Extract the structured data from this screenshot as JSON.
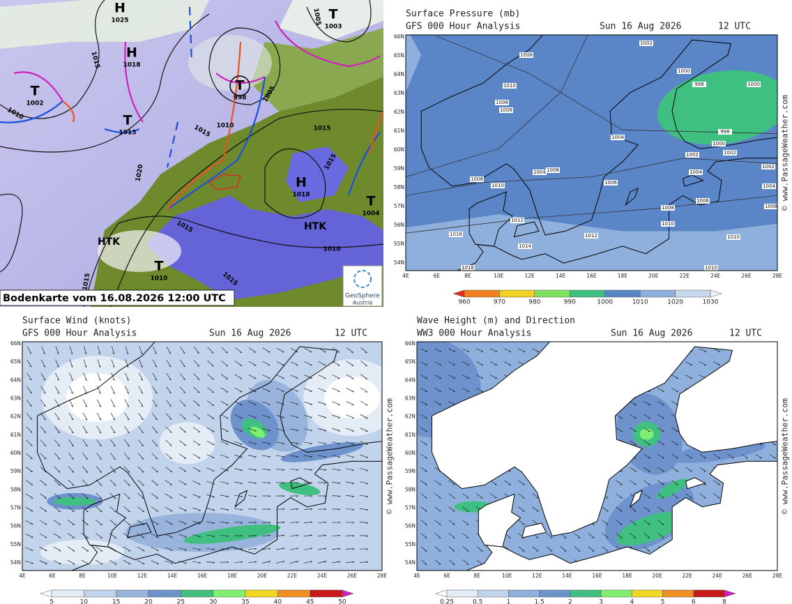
{
  "analysis_map": {
    "caption": "Bodenkarte vom 16.08.2026 12:00 UTC",
    "logo_name": "GeoSphere",
    "logo_country": "Austria",
    "centers": [
      {
        "letter": "H",
        "pressure": "1025"
      },
      {
        "letter": "H",
        "pressure": "1018"
      },
      {
        "letter": "T",
        "pressure": "1002"
      },
      {
        "letter": "T",
        "pressure": "1013"
      },
      {
        "letter": "T",
        "pressure": "998"
      },
      {
        "letter": "T",
        "pressure": "1003"
      },
      {
        "letter": "H",
        "pressure": "1018"
      },
      {
        "letter": "T",
        "pressure": "1004"
      },
      {
        "letter": "T",
        "pressure": "1010"
      }
    ],
    "isobar_labels": [
      "1015",
      "1010",
      "1005",
      "1005",
      "1015",
      "1010",
      "1015",
      "1020",
      "1015",
      "1010",
      "1015",
      "1015",
      "1015"
    ],
    "airmass_labels": [
      "HTK",
      "HTK"
    ]
  },
  "lat_labels": [
    "66N",
    "65N",
    "64N",
    "63N",
    "62N",
    "61N",
    "60N",
    "59N",
    "58N",
    "57N",
    "56N",
    "55N",
    "54N"
  ],
  "lon_labels": [
    "4E",
    "6E",
    "8E",
    "10E",
    "12E",
    "14E",
    "16E",
    "18E",
    "20E",
    "22E",
    "24E",
    "26E",
    "28E"
  ],
  "panels": [
    {
      "kind": "pressure",
      "title": "Surface Pressure (mb)",
      "subtitle": "GFS 000 Hour Analysis",
      "date": "Sun 16 Aug 2026",
      "time": "12 UTC",
      "credit": "© www.PassageWeather.com",
      "colorbar": {
        "levels": [
          960,
          970,
          980,
          990,
          1000,
          1010,
          1020,
          1030
        ],
        "colors": [
          "#e03020",
          "#f08020",
          "#f0d020",
          "#80e060",
          "#40c080",
          "#5a86c8",
          "#8fb0dc",
          "#c8d8ec",
          "#eef2f8"
        ]
      },
      "contour_labels": [
        1008,
        1002,
        1010,
        1000,
        998,
        1000,
        1008,
        1008,
        998,
        1004,
        1000,
        1002,
        1002,
        1008,
        1004,
        1004,
        1002,
        1006,
        1008,
        1010,
        1004,
        1006,
        1008,
        1008,
        1012,
        1010,
        1016,
        1012,
        1010,
        1014,
        1016,
        1010
      ]
    },
    {
      "kind": "wind",
      "title": "Surface Wind (knots)",
      "subtitle": "GFS 000 Hour Analysis",
      "date": "Sun 16 Aug 2026",
      "time": "12 UTC",
      "credit": "© www.PassageWeather.com",
      "colorbar": {
        "levels": [
          5,
          10,
          15,
          20,
          25,
          30,
          35,
          40,
          45,
          50
        ],
        "colors": [
          "#ffffff",
          "#e4ecf6",
          "#c2d4ec",
          "#98b4dc",
          "#6e92cc",
          "#40c080",
          "#80ee70",
          "#f0d820",
          "#f09020",
          "#c81818",
          "#d020c0"
        ]
      }
    },
    {
      "kind": "wave",
      "title": "Wave Height (m) and Direction",
      "subtitle": "WW3 000 Hour Analysis",
      "date": "Sun 16 Aug 2026",
      "time": "12 UTC",
      "credit": "© www.PassageWeather.com",
      "colorbar": {
        "levels": [
          0.25,
          0.5,
          1,
          1.5,
          2,
          3,
          4,
          5,
          6,
          8
        ],
        "colors": [
          "#ffffff",
          "#e4ecf6",
          "#c2d4ec",
          "#8fb0dc",
          "#6e92cc",
          "#40c080",
          "#80ee70",
          "#f0d820",
          "#f09020",
          "#c81818",
          "#d020c0"
        ]
      }
    }
  ]
}
